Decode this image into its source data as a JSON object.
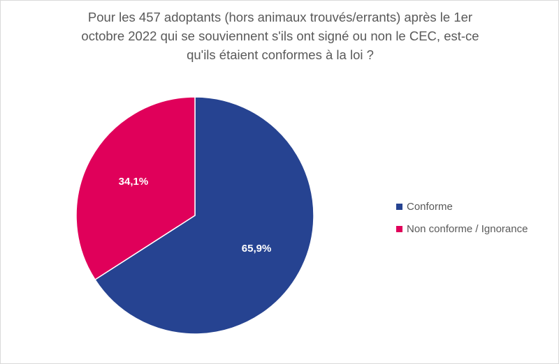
{
  "chart_data": {
    "type": "pie",
    "title": "Pour les 457 adoptants (hors animaux trouvés/errants) après le 1er octobre 2022 qui se souviennent s'ils ont signé ou non le CEC, est-ce qu'ils étaient conformes à la loi ?",
    "title_lines": [
      "Pour les 457 adoptants (hors animaux trouvés/errants) après le 1er",
      "octobre 2022 qui se souviennent s'ils ont signé ou non le CEC, est-ce",
      "qu'ils étaient conformes à la loi ?"
    ],
    "slices": [
      {
        "label": "Conforme",
        "value": 65.9,
        "display": "65,9%",
        "color": "#264391"
      },
      {
        "label": "Non conforme / Ignorance",
        "value": 34.1,
        "display": "34,1%",
        "color": "#e0005a"
      }
    ],
    "legend_position": "right",
    "start_angle": "12 o'clock",
    "direction": "clockwise"
  }
}
